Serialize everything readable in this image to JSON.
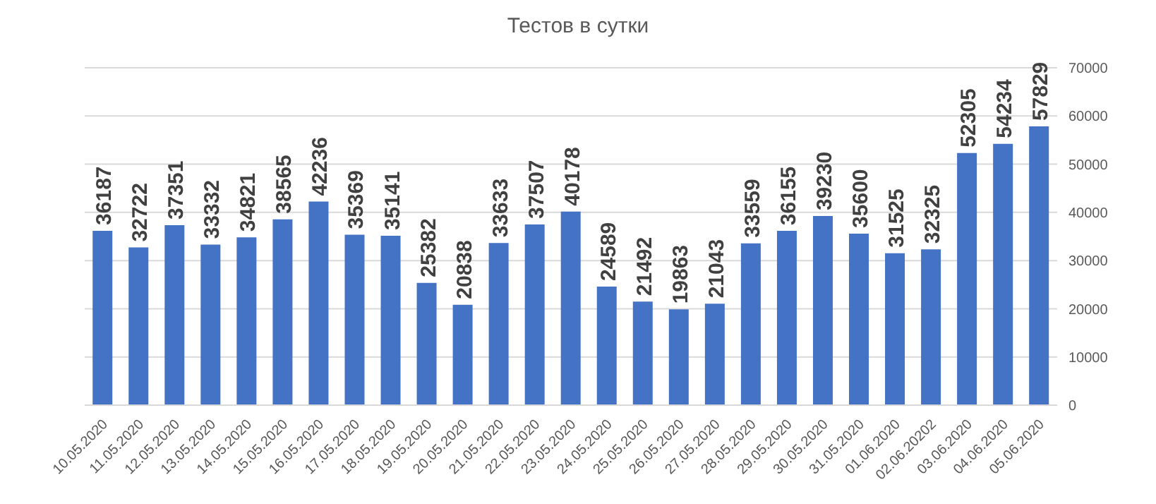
{
  "chart_data": {
    "type": "bar",
    "title": "Тестов в сутки",
    "categories": [
      "10.05.2020",
      "11.05.2020",
      "12.05.2020",
      "13.05.2020",
      "14.05.2020",
      "15.05.2020",
      "16.05.2020",
      "17.05.2020",
      "18.05.2020",
      "19.05.2020",
      "20.05.2020",
      "21.05.2020",
      "22.05.2020",
      "23.05.2020",
      "24.05.2020",
      "25.05.2020",
      "26.05.2020",
      "27.05.2020",
      "28.05.2020",
      "29.05.2020",
      "30.05.2020",
      "31.05.2020",
      "01.06.2020",
      "02.06.20202",
      "03.06.2020",
      "04.06.2020",
      "05.06.2020"
    ],
    "values": [
      36187,
      32722,
      37351,
      33332,
      34821,
      38565,
      42236,
      35369,
      35141,
      25382,
      20838,
      33633,
      37507,
      40178,
      24589,
      21492,
      19863,
      21043,
      33559,
      36155,
      39230,
      35600,
      31525,
      32325,
      52305,
      54234,
      57829
    ],
    "color": "#4472c4",
    "ylim": [
      0,
      70000
    ],
    "yticks": [
      0,
      10000,
      20000,
      30000,
      40000,
      50000,
      60000,
      70000
    ],
    "grid": "y",
    "data_labels": true
  }
}
